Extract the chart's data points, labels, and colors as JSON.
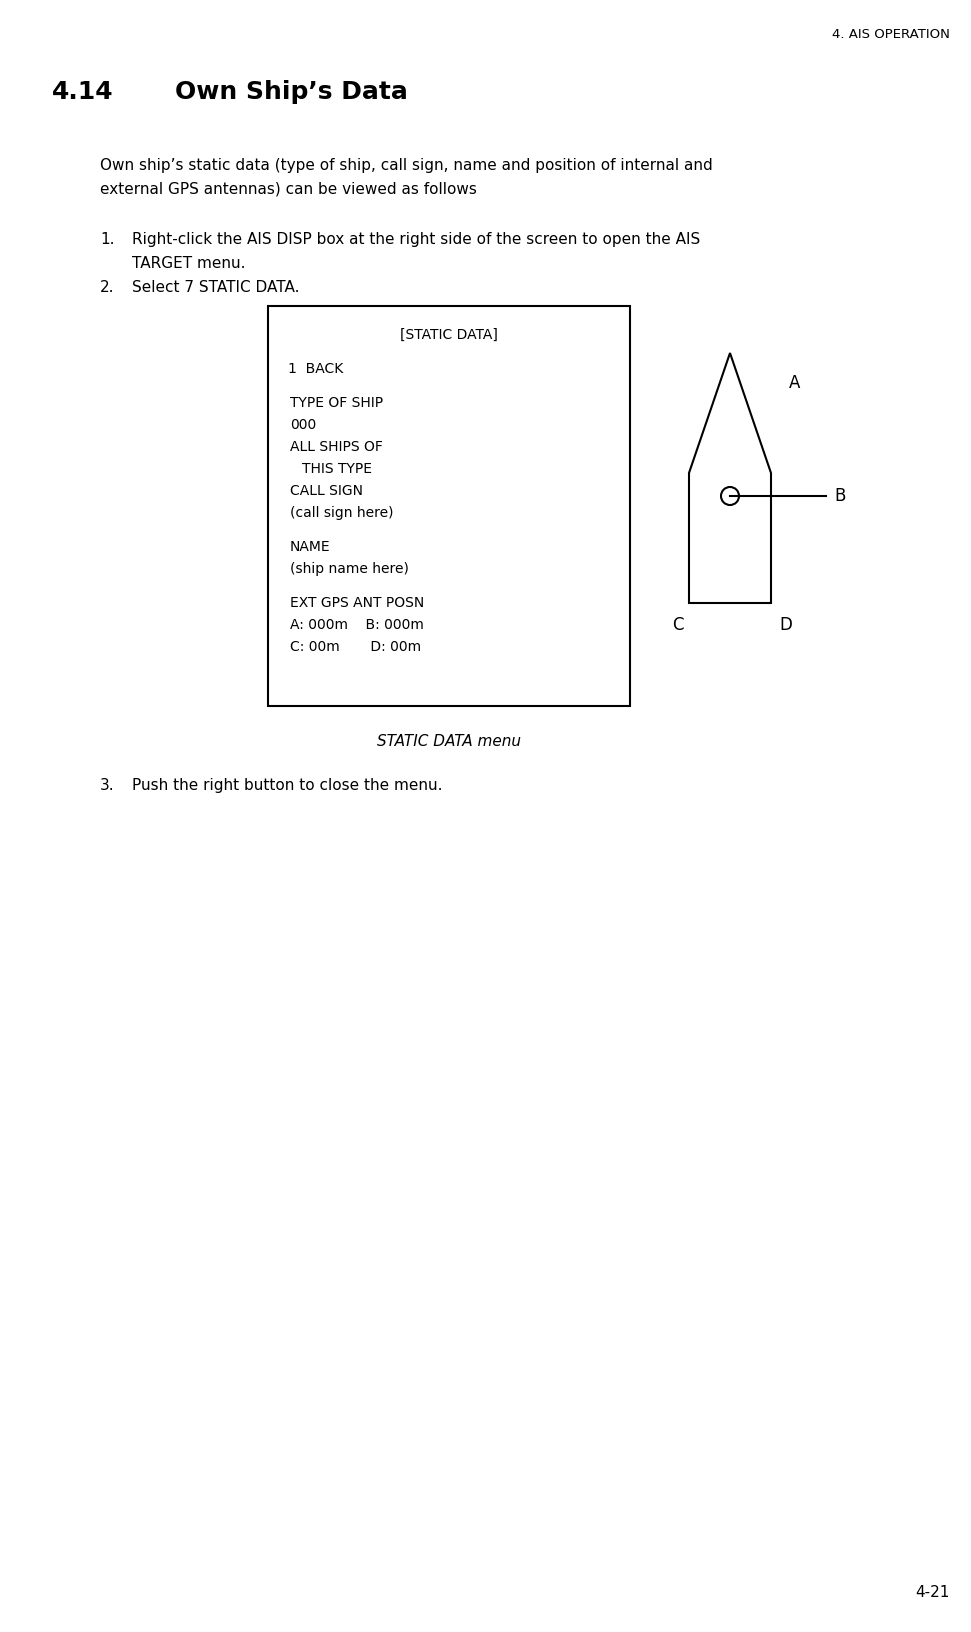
{
  "page_header": "4. AIS OPERATION",
  "section_num": "4.14",
  "section_title": "Own Ship’s Data",
  "body_line1": "Own ship’s static data (type of ship, call sign, name and position of internal and",
  "body_line2": "external GPS antennas) can be viewed as follows",
  "step1a": "Right-click the AIS DISP box at the right side of the screen to open the AIS",
  "step1b": "TARGET menu.",
  "step2": "Select 7 STATIC DATA.",
  "step3": "Push the right button to close the menu.",
  "menu_title": "[STATIC DATA]",
  "menu_lines": [
    {
      "text": "1  BACK",
      "indent": 0.18
    },
    {
      "text": "",
      "indent": 0
    },
    {
      "text": "TYPE OF SHIP",
      "indent": 0.38
    },
    {
      "text": "000",
      "indent": 0.38
    },
    {
      "text": "ALL SHIPS OF",
      "indent": 0.38
    },
    {
      "text": "THIS TYPE",
      "indent": 1.55
    },
    {
      "text": "CALL SIGN",
      "indent": 0.38
    },
    {
      "text": "(call sign here)",
      "indent": 0.38
    },
    {
      "text": "",
      "indent": 0
    },
    {
      "text": "NAME",
      "indent": 0.38
    },
    {
      "text": "(ship name here)",
      "indent": 0.38
    },
    {
      "text": "",
      "indent": 0
    },
    {
      "text": "EXT GPS ANT POSN",
      "indent": 0.38
    },
    {
      "text": "A: 000m    B: 000m",
      "indent": 0.38
    },
    {
      "text": "C: 00m       D: 00m",
      "indent": 0.38
    }
  ],
  "caption": "STATIC DATA menu",
  "page_num": "4-21",
  "bg_color": "#ffffff",
  "text_color": "#000000",
  "box_color": "#000000"
}
